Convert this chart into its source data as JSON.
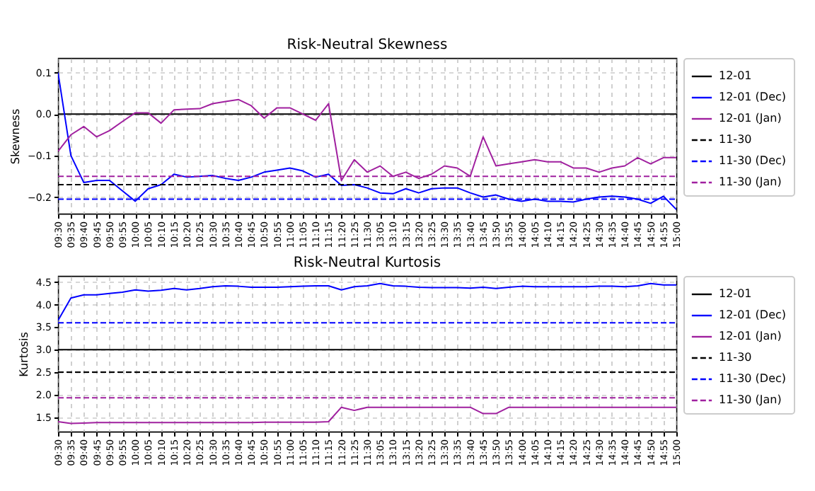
{
  "chart_data": [
    {
      "type": "line",
      "title": "Risk-Neutral Skewness",
      "ylabel": "Skewness",
      "categories": [
        "09:30",
        "09:35",
        "09:40",
        "09:45",
        "09:50",
        "09:55",
        "10:00",
        "10:05",
        "10:10",
        "10:15",
        "10:20",
        "10:25",
        "10:30",
        "10:35",
        "10:40",
        "10:45",
        "10:50",
        "10:55",
        "11:00",
        "11:05",
        "11:10",
        "11:15",
        "11:20",
        "11:25",
        "11:30",
        "13:05",
        "13:10",
        "13:15",
        "13:20",
        "13:25",
        "13:30",
        "13:35",
        "13:40",
        "13:45",
        "13:50",
        "13:55",
        "14:00",
        "14:05",
        "14:10",
        "14:15",
        "14:20",
        "14:25",
        "14:30",
        "14:35",
        "14:40",
        "14:45",
        "14:50",
        "14:55",
        "15:00"
      ],
      "series": [
        {
          "name": "12-01",
          "color": "#000000",
          "line_style": "solid",
          "values": [
            0,
            0,
            0,
            0,
            0,
            0,
            0,
            0,
            0,
            0,
            0,
            0,
            0,
            0,
            0,
            0,
            0,
            0,
            0,
            0,
            0,
            0,
            0,
            0,
            0,
            0,
            0,
            0,
            0,
            0,
            0,
            0,
            0,
            0,
            0,
            0,
            0,
            0,
            0,
            0,
            0,
            0,
            0,
            0,
            0,
            0,
            0,
            0,
            0
          ]
        },
        {
          "name": "12-01 (Dec)",
          "color": "#0000ff",
          "line_style": "solid",
          "values": [
            0.1,
            -0.1,
            -0.165,
            -0.16,
            -0.16,
            -0.185,
            -0.21,
            -0.18,
            -0.17,
            -0.145,
            -0.152,
            -0.15,
            -0.148,
            -0.155,
            -0.16,
            -0.152,
            -0.14,
            -0.135,
            -0.13,
            -0.137,
            -0.152,
            -0.145,
            -0.172,
            -0.17,
            -0.178,
            -0.19,
            -0.192,
            -0.18,
            -0.19,
            -0.18,
            -0.178,
            -0.178,
            -0.19,
            -0.2,
            -0.195,
            -0.205,
            -0.21,
            -0.205,
            -0.21,
            -0.21,
            -0.212,
            -0.205,
            -0.2,
            -0.198,
            -0.2,
            -0.205,
            -0.215,
            -0.198,
            -0.23
          ]
        },
        {
          "name": "12-01 (Jan)",
          "color": "#a0209f",
          "line_style": "solid",
          "values": [
            -0.09,
            -0.05,
            -0.03,
            -0.055,
            -0.04,
            -0.018,
            0.003,
            0.003,
            -0.022,
            0.01,
            0.012,
            0.013,
            0.025,
            0.03,
            0.035,
            0.02,
            -0.01,
            0.015,
            0.015,
            0.0,
            -0.015,
            0.025,
            -0.16,
            -0.11,
            -0.14,
            -0.125,
            -0.15,
            -0.14,
            -0.155,
            -0.145,
            -0.125,
            -0.13,
            -0.15,
            -0.055,
            -0.125,
            -0.12,
            -0.115,
            -0.11,
            -0.115,
            -0.115,
            -0.13,
            -0.13,
            -0.14,
            -0.13,
            -0.125,
            -0.105,
            -0.12,
            -0.105,
            -0.105
          ]
        },
        {
          "name": "11-30",
          "color": "#000000",
          "line_style": "dashed",
          "values": [
            -0.17,
            -0.17,
            -0.17,
            -0.17,
            -0.17,
            -0.17,
            -0.17,
            -0.17,
            -0.17,
            -0.17,
            -0.17,
            -0.17,
            -0.17,
            -0.17,
            -0.17,
            -0.17,
            -0.17,
            -0.17,
            -0.17,
            -0.17,
            -0.17,
            -0.17,
            -0.17,
            -0.17,
            -0.17,
            -0.17,
            -0.17,
            -0.17,
            -0.17,
            -0.17,
            -0.17,
            -0.17,
            -0.17,
            -0.17,
            -0.17,
            -0.17,
            -0.17,
            -0.17,
            -0.17,
            -0.17,
            -0.17,
            -0.17,
            -0.17,
            -0.17,
            -0.17,
            -0.17,
            -0.17,
            -0.17,
            -0.17
          ]
        },
        {
          "name": "11-30 (Dec)",
          "color": "#0000ff",
          "line_style": "dashed",
          "values": [
            -0.205,
            -0.205,
            -0.205,
            -0.205,
            -0.205,
            -0.205,
            -0.205,
            -0.205,
            -0.205,
            -0.205,
            -0.205,
            -0.205,
            -0.205,
            -0.205,
            -0.205,
            -0.205,
            -0.205,
            -0.205,
            -0.205,
            -0.205,
            -0.205,
            -0.205,
            -0.205,
            -0.205,
            -0.205,
            -0.205,
            -0.205,
            -0.205,
            -0.205,
            -0.205,
            -0.205,
            -0.205,
            -0.205,
            -0.205,
            -0.205,
            -0.205,
            -0.205,
            -0.205,
            -0.205,
            -0.205,
            -0.205,
            -0.205,
            -0.205,
            -0.205,
            -0.205,
            -0.205,
            -0.205,
            -0.205,
            -0.205
          ]
        },
        {
          "name": "11-30 (Jan)",
          "color": "#a0209f",
          "line_style": "dashed",
          "values": [
            -0.15,
            -0.15,
            -0.15,
            -0.15,
            -0.15,
            -0.15,
            -0.15,
            -0.15,
            -0.15,
            -0.15,
            -0.15,
            -0.15,
            -0.15,
            -0.15,
            -0.15,
            -0.15,
            -0.15,
            -0.15,
            -0.15,
            -0.15,
            -0.15,
            -0.15,
            -0.15,
            -0.15,
            -0.15,
            -0.15,
            -0.15,
            -0.15,
            -0.15,
            -0.15,
            -0.15,
            -0.15,
            -0.15,
            -0.15,
            -0.15,
            -0.15,
            -0.15,
            -0.15,
            -0.15,
            -0.15,
            -0.15,
            -0.15,
            -0.15,
            -0.15,
            -0.15,
            -0.15,
            -0.15,
            -0.15,
            -0.15
          ]
        }
      ],
      "ylim": [
        -0.24,
        0.135
      ],
      "yticks": [
        {
          "value": -0.2,
          "label": "−0.2"
        },
        {
          "value": -0.1,
          "label": "−0.1"
        },
        {
          "value": 0,
          "label": "0.0"
        },
        0.1
      ],
      "grid": true,
      "legend": "right"
    },
    {
      "type": "line",
      "title": "Risk-Neutral Kurtosis",
      "ylabel": "Kurtosis",
      "categories": [
        "09:30",
        "09:35",
        "09:40",
        "09:45",
        "09:50",
        "09:55",
        "10:00",
        "10:05",
        "10:10",
        "10:15",
        "10:20",
        "10:25",
        "10:30",
        "10:35",
        "10:40",
        "10:45",
        "10:50",
        "10:55",
        "11:00",
        "11:05",
        "11:10",
        "11:15",
        "11:20",
        "11:25",
        "11:30",
        "13:05",
        "13:10",
        "13:15",
        "13:20",
        "13:25",
        "13:30",
        "13:35",
        "13:40",
        "13:45",
        "13:50",
        "13:55",
        "14:00",
        "14:05",
        "14:10",
        "14:15",
        "14:20",
        "14:25",
        "14:30",
        "14:35",
        "14:40",
        "14:45",
        "14:50",
        "14:55",
        "15:00"
      ],
      "series": [
        {
          "name": "12-01",
          "color": "#000000",
          "line_style": "solid",
          "values": [
            3,
            3,
            3,
            3,
            3,
            3,
            3,
            3,
            3,
            3,
            3,
            3,
            3,
            3,
            3,
            3,
            3,
            3,
            3,
            3,
            3,
            3,
            3,
            3,
            3,
            3,
            3,
            3,
            3,
            3,
            3,
            3,
            3,
            3,
            3,
            3,
            3,
            3,
            3,
            3,
            3,
            3,
            3,
            3,
            3,
            3,
            3,
            3,
            3
          ]
        },
        {
          "name": "12-01 (Dec)",
          "color": "#0000ff",
          "line_style": "solid",
          "values": [
            3.65,
            4.15,
            4.22,
            4.22,
            4.25,
            4.28,
            4.33,
            4.3,
            4.32,
            4.36,
            4.33,
            4.36,
            4.4,
            4.42,
            4.41,
            4.39,
            4.39,
            4.39,
            4.4,
            4.41,
            4.42,
            4.42,
            4.33,
            4.4,
            4.42,
            4.47,
            4.42,
            4.41,
            4.39,
            4.38,
            4.38,
            4.38,
            4.37,
            4.39,
            4.36,
            4.39,
            4.41,
            4.4,
            4.4,
            4.4,
            4.4,
            4.4,
            4.41,
            4.41,
            4.4,
            4.42,
            4.47,
            4.44,
            4.44
          ]
        },
        {
          "name": "12-01 (Jan)",
          "color": "#a0209f",
          "line_style": "solid",
          "values": [
            1.4,
            1.36,
            1.37,
            1.38,
            1.38,
            1.38,
            1.38,
            1.38,
            1.38,
            1.38,
            1.38,
            1.38,
            1.38,
            1.38,
            1.38,
            1.38,
            1.39,
            1.39,
            1.39,
            1.39,
            1.39,
            1.4,
            1.72,
            1.65,
            1.72,
            1.72,
            1.72,
            1.72,
            1.72,
            1.72,
            1.72,
            1.72,
            1.72,
            1.58,
            1.58,
            1.72,
            1.72,
            1.72,
            1.72,
            1.72,
            1.72,
            1.72,
            1.72,
            1.72,
            1.72,
            1.72,
            1.72,
            1.72,
            1.72
          ]
        },
        {
          "name": "11-30",
          "color": "#000000",
          "line_style": "dashed",
          "values": [
            2.5,
            2.5,
            2.5,
            2.5,
            2.5,
            2.5,
            2.5,
            2.5,
            2.5,
            2.5,
            2.5,
            2.5,
            2.5,
            2.5,
            2.5,
            2.5,
            2.5,
            2.5,
            2.5,
            2.5,
            2.5,
            2.5,
            2.5,
            2.5,
            2.5,
            2.5,
            2.5,
            2.5,
            2.5,
            2.5,
            2.5,
            2.5,
            2.5,
            2.5,
            2.5,
            2.5,
            2.5,
            2.5,
            2.5,
            2.5,
            2.5,
            2.5,
            2.5,
            2.5,
            2.5,
            2.5,
            2.5,
            2.5,
            2.5
          ]
        },
        {
          "name": "11-30 (Dec)",
          "color": "#0000ff",
          "line_style": "dashed",
          "values": [
            3.6,
            3.6,
            3.6,
            3.6,
            3.6,
            3.6,
            3.6,
            3.6,
            3.6,
            3.6,
            3.6,
            3.6,
            3.6,
            3.6,
            3.6,
            3.6,
            3.6,
            3.6,
            3.6,
            3.6,
            3.6,
            3.6,
            3.6,
            3.6,
            3.6,
            3.6,
            3.6,
            3.6,
            3.6,
            3.6,
            3.6,
            3.6,
            3.6,
            3.6,
            3.6,
            3.6,
            3.6,
            3.6,
            3.6,
            3.6,
            3.6,
            3.6,
            3.6,
            3.6,
            3.6,
            3.6,
            3.6,
            3.6,
            3.6
          ]
        },
        {
          "name": "11-30 (Jan)",
          "color": "#a0209f",
          "line_style": "dashed",
          "values": [
            1.93,
            1.93,
            1.93,
            1.93,
            1.93,
            1.93,
            1.93,
            1.93,
            1.93,
            1.93,
            1.93,
            1.93,
            1.93,
            1.93,
            1.93,
            1.93,
            1.93,
            1.93,
            1.93,
            1.93,
            1.93,
            1.93,
            1.93,
            1.93,
            1.93,
            1.93,
            1.93,
            1.93,
            1.93,
            1.93,
            1.93,
            1.93,
            1.93,
            1.93,
            1.93,
            1.93,
            1.93,
            1.93,
            1.93,
            1.93,
            1.93,
            1.93,
            1.93,
            1.93,
            1.93,
            1.93,
            1.93,
            1.93,
            1.93
          ]
        }
      ],
      "ylim": [
        1.18,
        4.64
      ],
      "yticks": [
        1.5,
        {
          "value": 2,
          "label": "2.0"
        },
        2.5,
        {
          "value": 3,
          "label": "3.0"
        },
        3.5,
        {
          "value": 4,
          "label": "4.0"
        },
        4.5
      ],
      "grid": true,
      "legend": "right"
    }
  ]
}
